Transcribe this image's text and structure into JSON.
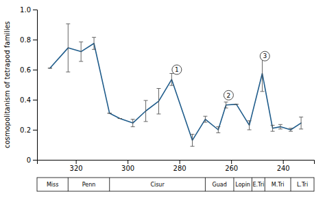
{
  "chart_data": {
    "type": "line",
    "x": [
      330,
      323,
      318,
      313,
      307,
      303,
      298,
      293,
      288,
      283,
      275,
      270,
      265,
      262,
      258,
      253,
      248,
      244,
      241,
      237,
      233
    ],
    "values": [
      0.61,
      0.745,
      0.72,
      0.775,
      0.31,
      0.275,
      0.245,
      0.325,
      0.39,
      0.535,
      0.13,
      0.27,
      0.2,
      0.365,
      0.37,
      0.23,
      0.575,
      0.21,
      0.22,
      0.2,
      0.245
    ],
    "yerr": [
      0.0,
      0.16,
      0.065,
      0.04,
      0.0,
      0.0,
      0.025,
      0.07,
      0.085,
      0.04,
      0.04,
      0.02,
      0.02,
      0.02,
      0.0,
      0.03,
      0.12,
      0.02,
      0.015,
      0.01,
      0.04
    ],
    "color": "#1f5c8b",
    "y_label": "cosmopolitanism of tetrapod families",
    "xlim": [
      335,
      228
    ],
    "xticks": [
      320,
      300,
      280,
      260,
      240
    ],
    "ylim": [
      0,
      1.0
    ],
    "yticks": [
      0,
      0.2,
      0.4,
      0.6,
      0.8,
      {
        "value": 1.0,
        "label": "1.0"
      }
    ],
    "periods": [
      {
        "label": "Miss",
        "xmin": 335,
        "xmax": 323
      },
      {
        "label": "Penn",
        "xmin": 323,
        "xmax": 307
      },
      {
        "label": "Cisur",
        "xmin": 307,
        "xmax": 270
      },
      {
        "label": "Guad",
        "xmin": 270,
        "xmax": 259
      },
      {
        "label": "Lopin",
        "xmin": 259,
        "xmax": 252
      },
      {
        "label": "E.Tri",
        "xmin": 252,
        "xmax": 247
      },
      {
        "label": "M.Tri",
        "xmin": 247,
        "xmax": 237
      },
      {
        "label": "L.Tri",
        "xmin": 237,
        "xmax": 228
      }
    ],
    "annotations": [
      {
        "label": "1",
        "x": 281,
        "y": 0.6
      },
      {
        "label": "2",
        "x": 261,
        "y": 0.43
      },
      {
        "label": "3",
        "x": 247,
        "y": 0.69
      }
    ]
  }
}
